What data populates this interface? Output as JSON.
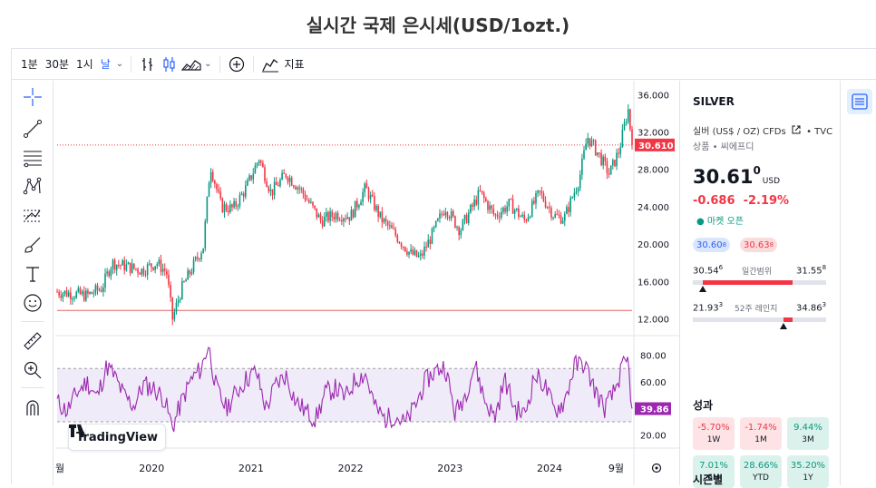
{
  "page": {
    "title": "실시간 국제 은시세(USD/1ozt.)"
  },
  "toolbar": {
    "intervals": [
      "1분",
      "30분",
      "1시",
      "날"
    ],
    "active_interval": "날",
    "indicators_label": "지표"
  },
  "left_tools": [
    "crosshair-icon",
    "trendline-icon",
    "fib-retracement-icon",
    "pattern-icon",
    "prediction-icon",
    "brush-icon",
    "text-icon",
    "emoji-icon",
    "ruler-icon",
    "zoom-in-icon",
    "magnet-icon"
  ],
  "logo": {
    "text": "TradingView"
  },
  "symbol": {
    "ticker": "SILVER",
    "description": "실버 (US$ / OZ) CFDs",
    "source": "TVC",
    "type_line": "상품 • 씨에프디",
    "price_main": "30.61",
    "price_sup": "0",
    "currency": "USD",
    "change": "-0.686",
    "change_pct": "-2.19%",
    "market_status": "마켓 오픈",
    "bid_main": "30.60",
    "bid_sup": "8",
    "ask_main": "30.63",
    "ask_sup": "8",
    "day_range": {
      "low": "30.54",
      "low_sup": "6",
      "high": "31.55",
      "high_sup": "8",
      "label": "일간범위"
    },
    "week52_range": {
      "low": "21.93",
      "low_sup": "3",
      "high": "34.86",
      "high_sup": "3",
      "label": "52주 레인지"
    }
  },
  "performance": {
    "title": "성과",
    "items": [
      {
        "value": "-5.70%",
        "period": "1W",
        "sign": "neg"
      },
      {
        "value": "-1.74%",
        "period": "1M",
        "sign": "neg"
      },
      {
        "value": "9.44%",
        "period": "3M",
        "sign": "pos"
      },
      {
        "value": "7.01%",
        "period": "6M",
        "sign": "pos"
      },
      {
        "value": "28.66%",
        "period": "YTD",
        "sign": "pos"
      },
      {
        "value": "35.20%",
        "period": "1Y",
        "sign": "pos"
      }
    ]
  },
  "seasonals": {
    "title": "시즌별"
  },
  "chart_data": [
    {
      "type": "candlestick",
      "ylim": [
        10.5,
        37
      ],
      "yticks": [
        "36.000",
        "32.000",
        "28.000",
        "24.000",
        "20.000",
        "16.000",
        "12.000"
      ],
      "ytick_values": [
        36,
        32,
        28,
        24,
        20,
        16,
        12
      ],
      "xticks": [
        "월",
        "2020",
        "2021",
        "2022",
        "2023",
        "2024",
        "9월"
      ],
      "xtick_dates": [
        2019.05,
        2020.0,
        2021.0,
        2022.0,
        2023.0,
        2024.0,
        2024.67
      ],
      "xlim": [
        2019.05,
        2024.83
      ],
      "last_price_label": "30.610",
      "last_price": 30.61,
      "reference_line": 12.9,
      "series": [
        {
          "date": 2019.05,
          "close": 14.9
        },
        {
          "date": 2019.2,
          "close": 14.7
        },
        {
          "date": 2019.35,
          "close": 14.5
        },
        {
          "date": 2019.5,
          "close": 15.3
        },
        {
          "date": 2019.6,
          "close": 18.0
        },
        {
          "date": 2019.75,
          "close": 17.6
        },
        {
          "date": 2019.9,
          "close": 17.2
        },
        {
          "date": 2020.05,
          "close": 18.0
        },
        {
          "date": 2020.15,
          "close": 17.0
        },
        {
          "date": 2020.21,
          "close": 12.0
        },
        {
          "date": 2020.3,
          "close": 15.2
        },
        {
          "date": 2020.42,
          "close": 17.7
        },
        {
          "date": 2020.52,
          "close": 19.8
        },
        {
          "date": 2020.59,
          "close": 28.5
        },
        {
          "date": 2020.7,
          "close": 24.0
        },
        {
          "date": 2020.82,
          "close": 23.8
        },
        {
          "date": 2020.95,
          "close": 26.0
        },
        {
          "date": 2021.08,
          "close": 29.2
        },
        {
          "date": 2021.2,
          "close": 25.5
        },
        {
          "date": 2021.35,
          "close": 27.5
        },
        {
          "date": 2021.5,
          "close": 25.8
        },
        {
          "date": 2021.7,
          "close": 22.5
        },
        {
          "date": 2021.85,
          "close": 23.2
        },
        {
          "date": 2022.0,
          "close": 23.0
        },
        {
          "date": 2022.15,
          "close": 26.0
        },
        {
          "date": 2022.3,
          "close": 22.8
        },
        {
          "date": 2022.45,
          "close": 21.0
        },
        {
          "date": 2022.6,
          "close": 19.0
        },
        {
          "date": 2022.7,
          "close": 18.5
        },
        {
          "date": 2022.82,
          "close": 21.0
        },
        {
          "date": 2022.95,
          "close": 24.0
        },
        {
          "date": 2023.1,
          "close": 21.5
        },
        {
          "date": 2023.3,
          "close": 25.5
        },
        {
          "date": 2023.45,
          "close": 23.0
        },
        {
          "date": 2023.6,
          "close": 24.3
        },
        {
          "date": 2023.75,
          "close": 22.5
        },
        {
          "date": 2023.9,
          "close": 25.5
        },
        {
          "date": 2024.05,
          "close": 23.0
        },
        {
          "date": 2024.15,
          "close": 22.8
        },
        {
          "date": 2024.3,
          "close": 27.0
        },
        {
          "date": 2024.38,
          "close": 31.5
        },
        {
          "date": 2024.5,
          "close": 29.5
        },
        {
          "date": 2024.6,
          "close": 27.5
        },
        {
          "date": 2024.7,
          "close": 30.0
        },
        {
          "date": 2024.79,
          "close": 34.5
        },
        {
          "date": 2024.83,
          "close": 30.61
        }
      ]
    },
    {
      "type": "line",
      "name": "RSI",
      "ylim": [
        15,
        92
      ],
      "yticks": [
        "80.00",
        "60.00",
        "40.00",
        "20.00"
      ],
      "ytick_values": [
        80,
        60,
        40,
        20
      ],
      "band": [
        70,
        30
      ],
      "last_value_label": "39.86",
      "last_value": 39.86,
      "x": [
        2019.05,
        2019.15,
        2019.25,
        2019.35,
        2019.45,
        2019.55,
        2019.62,
        2019.72,
        2019.82,
        2019.92,
        2020.02,
        2020.12,
        2020.21,
        2020.3,
        2020.4,
        2020.5,
        2020.57,
        2020.65,
        2020.75,
        2020.85,
        2020.95,
        2021.05,
        2021.15,
        2021.25,
        2021.35,
        2021.45,
        2021.55,
        2021.65,
        2021.75,
        2021.85,
        2021.95,
        2022.05,
        2022.15,
        2022.25,
        2022.35,
        2022.45,
        2022.55,
        2022.65,
        2022.75,
        2022.85,
        2022.95,
        2023.05,
        2023.15,
        2023.25,
        2023.35,
        2023.45,
        2023.55,
        2023.65,
        2023.75,
        2023.85,
        2023.95,
        2024.05,
        2024.15,
        2024.25,
        2024.35,
        2024.45,
        2024.55,
        2024.65,
        2024.73,
        2024.79,
        2024.83
      ],
      "values": [
        45,
        38,
        52,
        60,
        48,
        72,
        65,
        50,
        42,
        58,
        55,
        48,
        26,
        45,
        62,
        70,
        88,
        55,
        40,
        52,
        62,
        68,
        40,
        58,
        65,
        45,
        38,
        32,
        52,
        55,
        48,
        62,
        66,
        40,
        32,
        35,
        28,
        42,
        60,
        68,
        72,
        36,
        50,
        73,
        46,
        33,
        62,
        40,
        35,
        65,
        58,
        38,
        45,
        72,
        74,
        55,
        40,
        52,
        70,
        75,
        39.86
      ]
    }
  ]
}
